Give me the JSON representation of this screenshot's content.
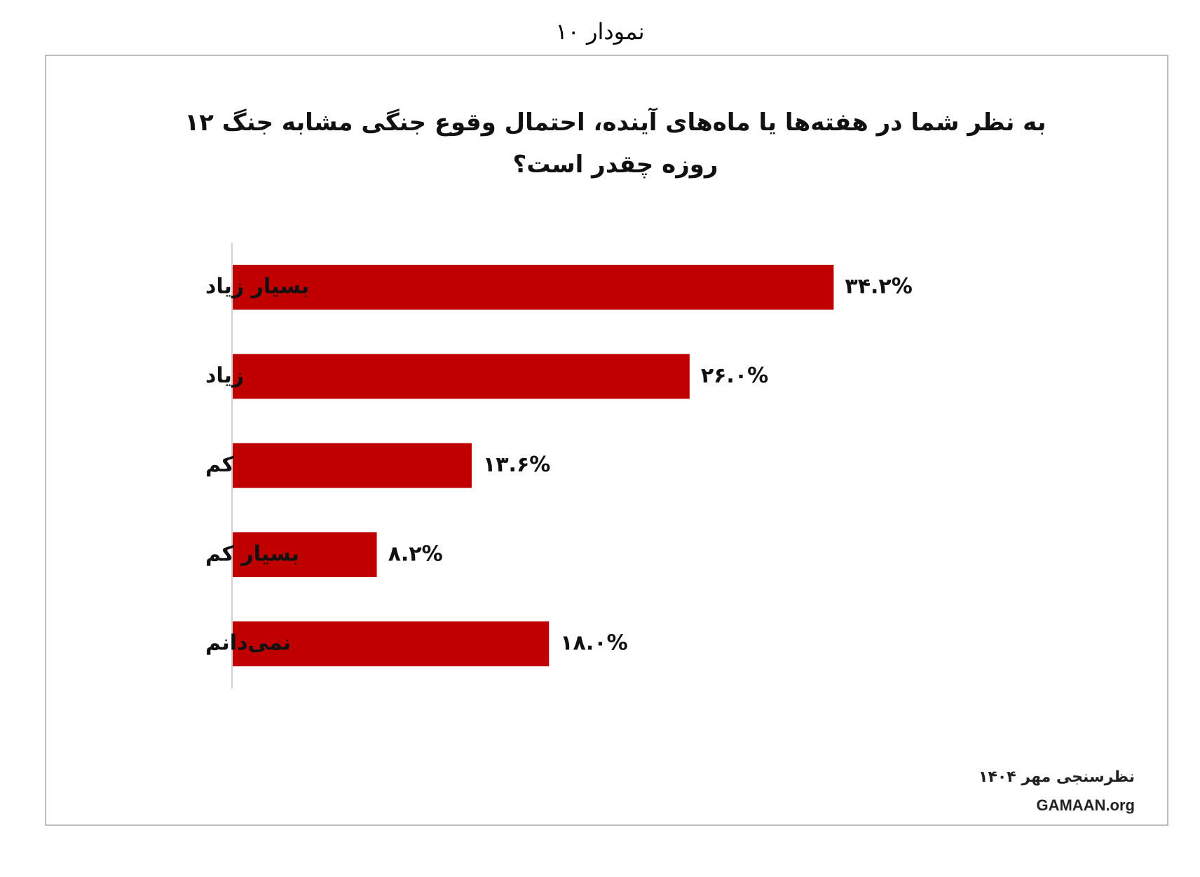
{
  "page_title": "نمودار ۱۰",
  "chart_data": {
    "type": "bar",
    "orientation": "horizontal",
    "title": "به نظر شما در هفته‌ها یا ماه‌های آینده، احتمال وقوع جنگی مشابه جنگ ۱۲ روزه چقدر است؟",
    "categories": [
      "بسیار زیاد",
      "زیاد",
      "کم",
      "بسیار کم",
      "نمی‌دانم"
    ],
    "values": [
      34.2,
      26.0,
      13.6,
      8.2,
      18.0
    ],
    "value_labels": [
      "۳۴.۲%",
      "۲۶.۰%",
      "۱۳.۶%",
      "۸.۲%",
      "۱۸.۰%"
    ],
    "color": "#c00000"
  },
  "source": {
    "survey": "نظرسنجی مهر ۱۴۰۴",
    "site": "GAMAAN.org"
  }
}
